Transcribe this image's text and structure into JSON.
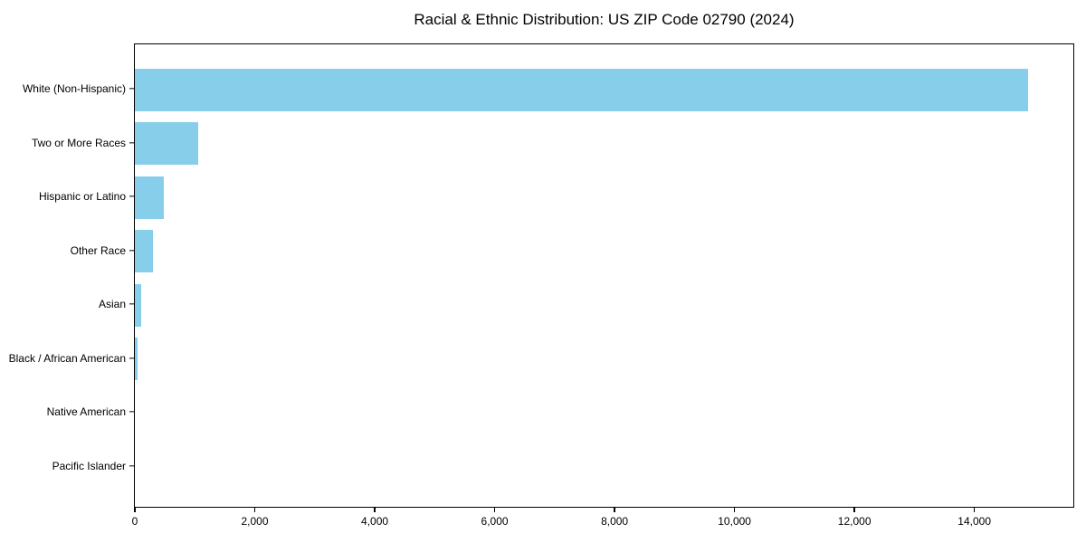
{
  "figure": {
    "background_color": "#ffffff",
    "text_color": "#000000"
  },
  "chart_data": {
    "type": "bar",
    "orientation": "horizontal",
    "title": "Racial & Ethnic Distribution: US ZIP Code 02790 (2024)",
    "categories": [
      "White (Non-Hispanic)",
      "Two or More Races",
      "Hispanic or Latino",
      "Other Race",
      "Asian",
      "Black / African American",
      "Native American",
      "Pacific Islander"
    ],
    "values": [
      14900,
      1050,
      480,
      300,
      100,
      40,
      0,
      0
    ],
    "xlabel": "",
    "ylabel": "",
    "xlim": [
      0,
      15650
    ],
    "x_ticks": [
      0,
      2000,
      4000,
      6000,
      8000,
      10000,
      12000,
      14000
    ],
    "x_tick_labels": [
      "0",
      "2,000",
      "4,000",
      "6,000",
      "8,000",
      "10,000",
      "12,000",
      "14,000"
    ],
    "bar_color": "#87CEEB",
    "spine_color": "#000000",
    "grid": false,
    "legend": "none"
  }
}
